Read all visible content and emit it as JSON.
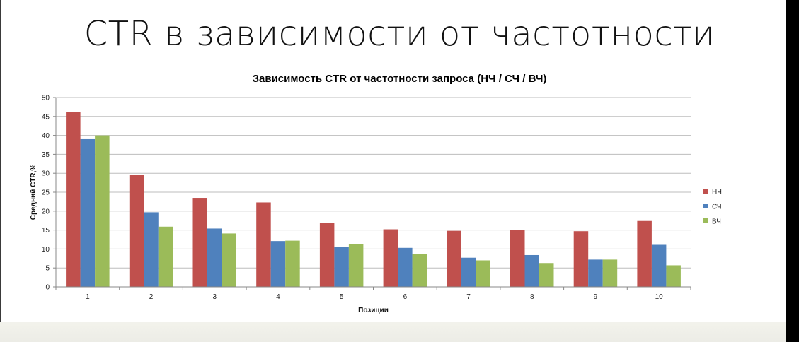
{
  "slide": {
    "title": "CTR в зависимости от частотности"
  },
  "chart_data": {
    "type": "bar",
    "title": "Зависимость CTR от частотности запроса (НЧ / СЧ / ВЧ)",
    "xlabel": "Позиции",
    "ylabel": "Средний CTR,%",
    "categories": [
      "1",
      "2",
      "3",
      "4",
      "5",
      "6",
      "7",
      "8",
      "9",
      "10"
    ],
    "ylim": [
      0,
      50
    ],
    "yticks": [
      0,
      5,
      10,
      15,
      20,
      25,
      30,
      35,
      40,
      45,
      50
    ],
    "grid": true,
    "legend_position": "right",
    "series": [
      {
        "name": "НЧ",
        "color": "#c0504d",
        "values": [
          46.1,
          29.5,
          23.5,
          22.3,
          16.8,
          15.2,
          14.8,
          15.0,
          14.7,
          17.4
        ]
      },
      {
        "name": "СЧ",
        "color": "#4f81bd",
        "values": [
          39.0,
          19.7,
          15.4,
          12.1,
          10.5,
          10.3,
          7.7,
          8.4,
          7.2,
          11.1
        ]
      },
      {
        "name": "ВЧ",
        "color": "#9bbb59",
        "values": [
          40.0,
          15.9,
          14.1,
          12.2,
          11.3,
          8.6,
          7.0,
          6.3,
          7.2,
          5.7
        ]
      }
    ]
  }
}
